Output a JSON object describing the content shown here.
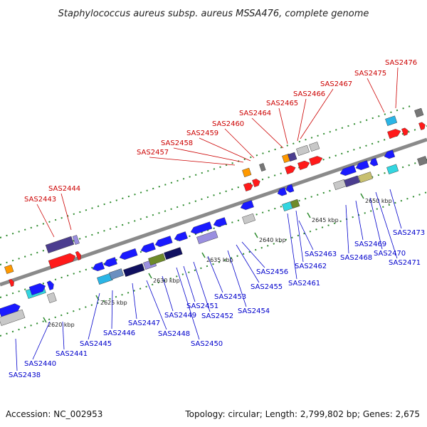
{
  "title": "Staphylococcus aureus subsp. aureus MSSA476, complete genome",
  "footer": {
    "accession": "Accession: NC_002953",
    "stats": "Topology: circular; Length: 2,799,802 bp; Genes: 2,675"
  },
  "colors": {
    "forward_label": "#cc0000",
    "reverse_label": "#0000cc",
    "backbone": "#8a8a8a",
    "tick": "#2e8b2e",
    "blue": "#1a1aff",
    "red": "#ff1a1a",
    "navy": "#101060",
    "purple": "#4b3d8f",
    "lavender": "#9a8fe0",
    "cyan": "#33d6e0",
    "skyblue": "#2ab5e6",
    "olive": "#6e8b2a",
    "khaki": "#c8c070",
    "orange": "#ff9900",
    "gray": "#c8c8c8",
    "darkgray": "#777777",
    "steel": "#6b8fc0"
  },
  "kbp_ticks": [
    "2620 kbp",
    "2625 kbp",
    "2630 kbp",
    "2635 kbp",
    "2640 kbp",
    "2645 kbp",
    "2650 kbp"
  ],
  "forward_labels": [
    "SAS2443",
    "SAS2444",
    "SAS2457",
    "SAS2458",
    "SAS2459",
    "SAS2460",
    "SAS2464",
    "SAS2465",
    "SAS2466",
    "SAS2467",
    "SAS2475",
    "SAS2476"
  ],
  "reverse_labels": [
    "SAS2438",
    "SAS2440",
    "SAS2441",
    "SAS2445",
    "SAS2446",
    "SAS2447",
    "SAS2448",
    "SAS2449",
    "SAS2450",
    "SAS2451",
    "SAS2452",
    "SAS2453",
    "SAS2454",
    "SAS2455",
    "SAS2456",
    "SAS2461",
    "SAS2462",
    "SAS2463",
    "SAS2468",
    "SAS2469",
    "SAS2470",
    "SAS2471",
    "SAS2473"
  ]
}
